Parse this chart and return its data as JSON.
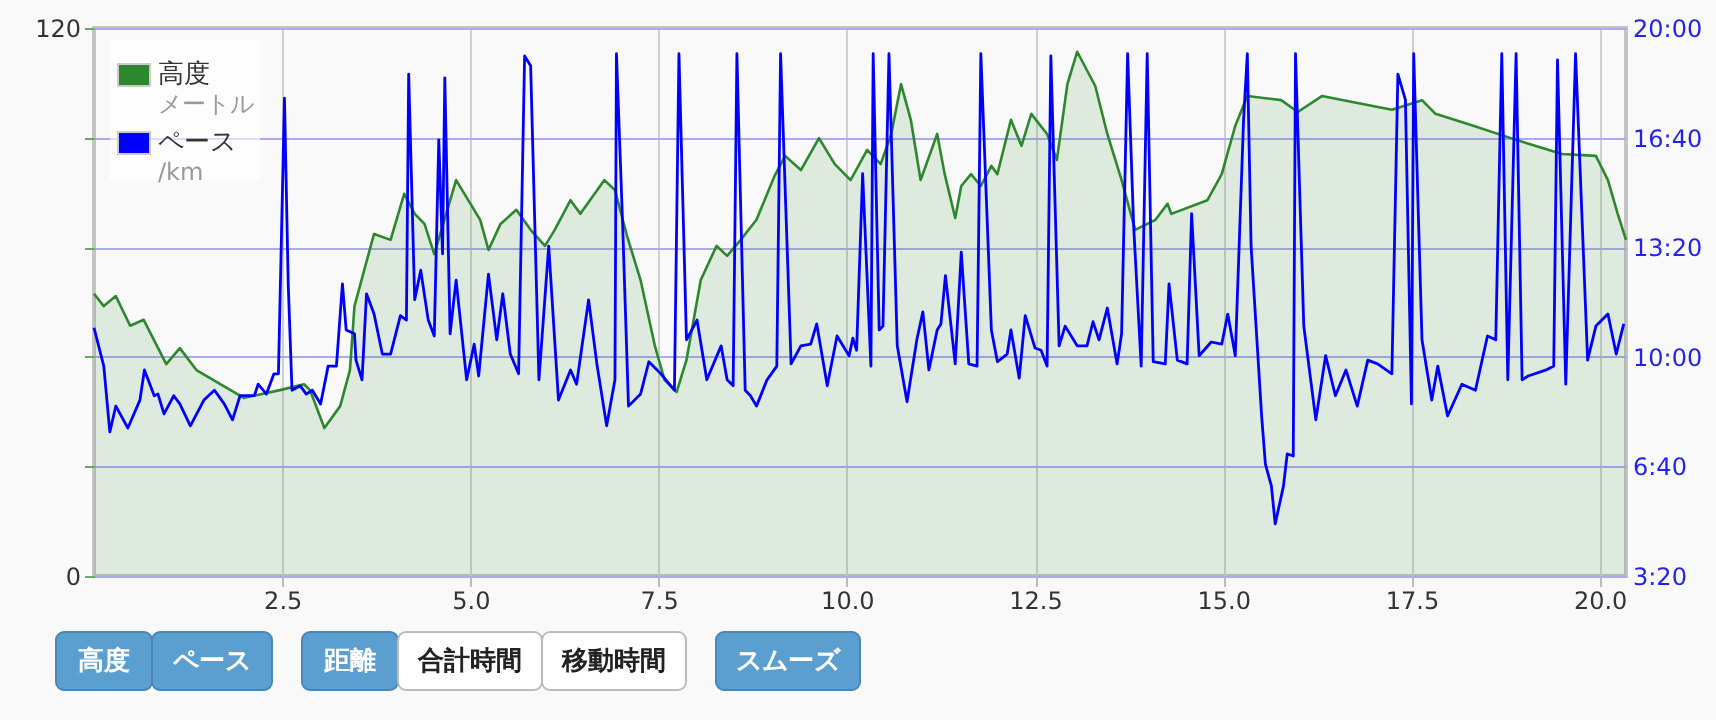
{
  "chart_data": {
    "type": "area",
    "xlim": [
      0,
      20.35
    ],
    "xticks": [
      2.5,
      {
        "value": 5,
        "label": "5.0"
      },
      7.5,
      {
        "value": 10,
        "label": "10.0"
      },
      12.5,
      {
        "value": 15,
        "label": "15.0"
      },
      17.5,
      {
        "value": 20,
        "label": "20.0"
      }
    ],
    "ylim": [
      0,
      120
    ],
    "yticks": [
      0,
      {
        "value": 24,
        "label": null
      },
      {
        "value": 48,
        "label": null
      },
      {
        "value": 72,
        "label": null
      },
      {
        "value": 96,
        "label": null
      },
      120
    ],
    "y2lim": [
      200,
      1200
    ],
    "y2ticks": [
      {
        "value": 200,
        "label": "3:20"
      },
      {
        "value": 400,
        "label": "6:40"
      },
      {
        "value": 600,
        "label": "10:00"
      },
      {
        "value": 800,
        "label": "13:20"
      },
      {
        "value": 1000,
        "label": "16:40"
      },
      {
        "value": 1200,
        "label": "20:00"
      }
    ],
    "grid": true,
    "legend": "top left",
    "annotations": [
      "高度",
      "ペース",
      "距離",
      "合計時間",
      "移動時間",
      "スムーズ",
      "メートル",
      "/km"
    ],
    "series": [
      {
        "name": "高度",
        "color": "#2d882d",
        "x": [
          0.0,
          0.13,
          0.29,
          0.48,
          0.66,
          0.96,
          1.14,
          1.36,
          1.99,
          2.47,
          2.79,
          2.87,
          3.06,
          3.27,
          3.4,
          3.46,
          3.72,
          3.94,
          4.12,
          4.26,
          4.39,
          4.52,
          4.81,
          5.13,
          5.24,
          5.4,
          5.61,
          5.8,
          5.99,
          6.12,
          6.33,
          6.46,
          6.78,
          6.92,
          7.08,
          7.26,
          7.45,
          7.58,
          7.74,
          7.87,
          8.06,
          8.27,
          8.41,
          8.59,
          8.8,
          9.04,
          9.18,
          9.39,
          9.63,
          9.84,
          10.05,
          10.27,
          10.45,
          10.59,
          10.72,
          10.85,
          10.98,
          11.2,
          11.3,
          11.44,
          11.52,
          11.65,
          11.78,
          11.92,
          12.0,
          12.18,
          12.32,
          12.45,
          12.66,
          12.79,
          12.93,
          13.06,
          13.3,
          13.46,
          13.65,
          13.83,
          14.1,
          14.26,
          14.31,
          14.79,
          14.98,
          15.16,
          15.32,
          15.77,
          15.99,
          16.31,
          17.24,
          17.64,
          17.82,
          18.25,
          18.89,
          19.5,
          19.95,
          20.11,
          20.24,
          20.35
        ],
        "values": [
          61.8,
          59.1,
          61.3,
          54.8,
          56.1,
          46.4,
          49.9,
          45.1,
          39.0,
          40.7,
          42.0,
          40.7,
          32.4,
          37.2,
          45.1,
          59.1,
          74.9,
          73.6,
          83.7,
          79.3,
          77.1,
          70.5,
          86.7,
          78.0,
          71.4,
          77.1,
          80.2,
          75.8,
          72.3,
          75.8,
          82.3,
          79.3,
          86.7,
          84.5,
          74.5,
          64.8,
          50.4,
          42.9,
          40.3,
          47.3,
          64.8,
          72.3,
          70.1,
          73.6,
          78.0,
          87.6,
          92.0,
          88.9,
          95.9,
          90.2,
          86.7,
          93.3,
          90.2,
          96.8,
          107.7,
          99.9,
          86.7,
          96.8,
          88.0,
          78.4,
          85.4,
          88.0,
          85.4,
          89.8,
          88.0,
          99.9,
          94.2,
          101.2,
          96.8,
          91.1,
          107.7,
          114.8,
          107.3,
          96.8,
          86.7,
          75.8,
          78.0,
          81.5,
          79.3,
          82.3,
          88.0,
          98.6,
          105.1,
          104.2,
          101.6,
          105.1,
          102.1,
          104.2,
          101.2,
          99.0,
          95.5,
          92.4,
          92.0,
          86.7,
          79.3,
          73.6
        ]
      },
      {
        "name": "ペース",
        "type": "line",
        "axis": "y2",
        "color": "#0000ff",
        "x": [
          0.0,
          0.13,
          0.21,
          0.29,
          0.45,
          0.61,
          0.67,
          0.8,
          0.85,
          0.93,
          1.06,
          1.14,
          1.28,
          1.46,
          1.6,
          1.73,
          1.84,
          1.94,
          2.13,
          2.18,
          2.29,
          2.39,
          2.45,
          2.53,
          2.58,
          2.63,
          2.74,
          2.82,
          2.9,
          3.01,
          3.11,
          3.22,
          3.3,
          3.35,
          3.46,
          3.48,
          3.56,
          3.62,
          3.72,
          3.83,
          3.94,
          4.07,
          4.15,
          4.18,
          4.26,
          4.34,
          4.44,
          4.52,
          4.58,
          4.63,
          4.66,
          4.73,
          4.81,
          4.95,
          5.05,
          5.11,
          5.24,
          5.35,
          5.43,
          5.53,
          5.64,
          5.72,
          5.8,
          5.91,
          6.04,
          6.17,
          6.33,
          6.41,
          6.57,
          6.68,
          6.81,
          6.92,
          6.94,
          7.02,
          7.1,
          7.26,
          7.37,
          7.53,
          7.71,
          7.77,
          7.87,
          8.01,
          8.14,
          8.33,
          8.41,
          8.49,
          8.54,
          8.65,
          8.72,
          8.8,
          8.94,
          9.07,
          9.12,
          9.26,
          9.39,
          9.52,
          9.6,
          9.74,
          9.87,
          10.03,
          10.08,
          10.13,
          10.21,
          10.32,
          10.35,
          10.43,
          10.48,
          10.56,
          10.67,
          10.8,
          10.93,
          11.01,
          11.09,
          11.2,
          11.25,
          11.31,
          11.44,
          11.52,
          11.62,
          11.73,
          11.78,
          11.92,
          12.0,
          12.13,
          12.18,
          12.29,
          12.37,
          12.5,
          12.58,
          12.66,
          12.71,
          12.82,
          12.9,
          13.06,
          13.19,
          13.27,
          13.35,
          13.46,
          13.59,
          13.65,
          13.73,
          13.81,
          13.91,
          13.99,
          14.07,
          14.23,
          14.28,
          14.39,
          14.52,
          14.58,
          14.68,
          14.84,
          14.98,
          15.06,
          15.16,
          15.27,
          15.32,
          15.37,
          15.51,
          15.56,
          15.64,
          15.69,
          15.8,
          15.85,
          15.93,
          15.96,
          16.07,
          16.23,
          16.36,
          16.49,
          16.63,
          16.78,
          16.92,
          17.05,
          17.24,
          17.32,
          17.42,
          17.5,
          17.53,
          17.64,
          17.77,
          17.85,
          17.98,
          18.17,
          18.35,
          18.51,
          18.62,
          18.7,
          18.78,
          18.89,
          18.97,
          19.05,
          19.29,
          19.39,
          19.44,
          19.55,
          19.68,
          19.84,
          19.95,
          20.11,
          20.22,
          20.32
        ],
        "values": [
          653,
          583,
          463,
          510,
          470,
          521,
          576,
          529,
          532,
          496,
          529,
          514,
          474,
          521,
          539,
          514,
          485,
          529,
          529,
          550,
          532,
          569,
          569,
          1072,
          733,
          539,
          547,
          532,
          539,
          514,
          583,
          583,
          733,
          649,
          642,
          594,
          558,
          715,
          678,
          605,
          605,
          675,
          667,
          1116,
          704,
          758,
          667,
          638,
          996,
          788,
          1109,
          642,
          740,
          558,
          623,
          565,
          751,
          631,
          715,
          605,
          569,
          1149,
          1131,
          558,
          802,
          521,
          576,
          550,
          704,
          587,
          474,
          558,
          1153,
          850,
          510,
          532,
          591,
          569,
          539,
          1153,
          631,
          667,
          558,
          620,
          558,
          547,
          1153,
          539,
          529,
          510,
          558,
          583,
          1153,
          587,
          620,
          623,
          660,
          547,
          638,
          602,
          634,
          612,
          934,
          583,
          1153,
          649,
          656,
          1153,
          620,
          518,
          631,
          682,
          576,
          649,
          660,
          748,
          587,
          791,
          587,
          583,
          1153,
          649,
          591,
          605,
          649,
          561,
          675,
          616,
          612,
          583,
          1149,
          620,
          656,
          620,
          620,
          664,
          631,
          689,
          587,
          642,
          1153,
          839,
          583,
          1153,
          591,
          587,
          733,
          594,
          587,
          861,
          602,
          627,
          623,
          678,
          602,
          1032,
          1153,
          802,
          492,
          404,
          364,
          295,
          364,
          423,
          419,
          1153,
          656,
          485,
          602,
          529,
          576,
          510,
          594,
          587,
          569,
          1116,
          1069,
          514,
          1153,
          631,
          521,
          583,
          492,
          550,
          539,
          638,
          631,
          1153,
          558,
          1153,
          558,
          565,
          576,
          583,
          1142,
          550,
          1153,
          594,
          656,
          678,
          605,
          660
        ]
      }
    ]
  }
}
